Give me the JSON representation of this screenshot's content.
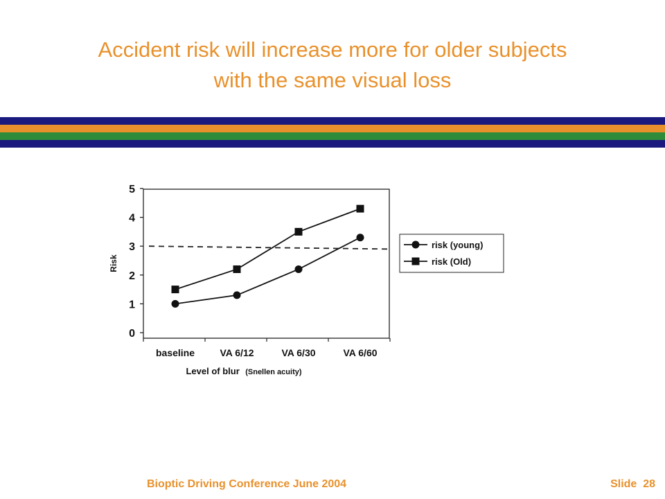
{
  "slide": {
    "title_line1": "Accident risk will increase more for older subjects",
    "title_line2": "with the same visual loss",
    "title_color": "#E8912C",
    "stripe_colors": [
      "#1A1A7E",
      "#E8912C",
      "#2E8B3A",
      "#1A1A7E"
    ]
  },
  "footer": {
    "conference": "Bioptic Driving Conference June 2004",
    "slide_label": "Slide",
    "slide_number": "28",
    "color": "#E8912C"
  },
  "chart_data": {
    "type": "line",
    "categories": [
      "baseline",
      "VA 6/12",
      "VA 6/30",
      "VA 6/60"
    ],
    "series": [
      {
        "name": "risk (young)",
        "marker": "circle",
        "values": [
          1.0,
          1.3,
          2.2,
          3.3
        ]
      },
      {
        "name": "risk (Old)",
        "marker": "square",
        "values": [
          1.5,
          2.2,
          3.5,
          4.3
        ]
      }
    ],
    "reference_line": {
      "y_start": 3.0,
      "y_end": 2.9,
      "style": "dashed"
    },
    "ylabel": "Risk",
    "xlabel_main": "Level of blur",
    "xlabel_paren": "(Snellen acuity)",
    "yticks": [
      "0",
      "1",
      "2",
      "3",
      "4",
      "5"
    ],
    "ylim": [
      0,
      5
    ],
    "legend_position": "right",
    "grid": false
  }
}
